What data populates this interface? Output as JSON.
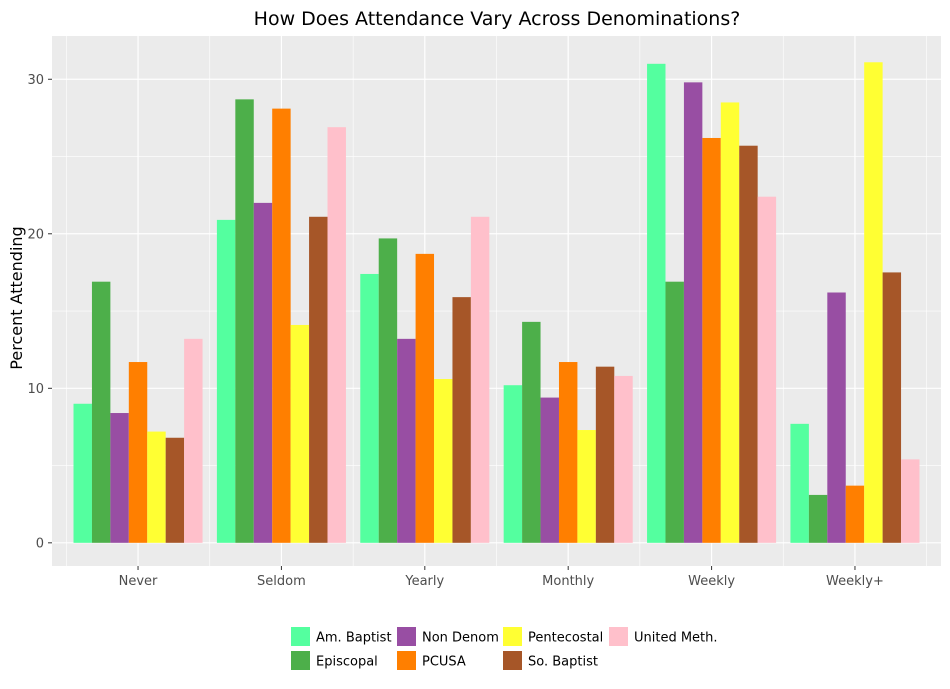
{
  "chart_data": {
    "type": "bar",
    "title": "How Does Attendance Vary Across Denominations?",
    "xlabel": "",
    "ylabel": "Percent Attending",
    "ylim": [
      -1.5,
      32.8
    ],
    "yticks": [
      0,
      10,
      20,
      30
    ],
    "ytick_labels": [
      "0",
      "10",
      "20",
      "30"
    ],
    "grid": true,
    "legend_position": "bottom",
    "categories": [
      "Never",
      "Seldom",
      "Yearly",
      "Monthly",
      "Weekly",
      "Weekly+"
    ],
    "series": [
      {
        "name": "Am. Baptist",
        "color": "#54FF9F",
        "values": [
          9.0,
          20.9,
          17.4,
          10.2,
          31.0,
          7.7
        ]
      },
      {
        "name": "Episcopal",
        "color": "#4DAF4A",
        "values": [
          16.9,
          28.7,
          19.7,
          14.3,
          16.9,
          3.1
        ]
      },
      {
        "name": "Non Denom",
        "color": "#984EA3",
        "values": [
          8.4,
          22.0,
          13.2,
          9.4,
          29.8,
          16.2
        ]
      },
      {
        "name": "PCUSA",
        "color": "#FF7F00",
        "values": [
          11.7,
          28.1,
          18.7,
          11.7,
          26.2,
          3.7
        ]
      },
      {
        "name": "Pentecostal",
        "color": "#FFFF33",
        "values": [
          7.2,
          14.1,
          10.6,
          7.3,
          28.5,
          31.1
        ]
      },
      {
        "name": "So. Baptist",
        "color": "#A65628",
        "values": [
          6.8,
          21.1,
          15.9,
          11.4,
          25.7,
          17.5
        ]
      },
      {
        "name": "United Meth.",
        "color": "#FFC0CB",
        "values": [
          13.2,
          26.9,
          21.1,
          10.8,
          22.4,
          5.4
        ]
      }
    ]
  },
  "style": {
    "panel_background": "#EBEBEB",
    "grid_color": "#FFFFFF"
  }
}
